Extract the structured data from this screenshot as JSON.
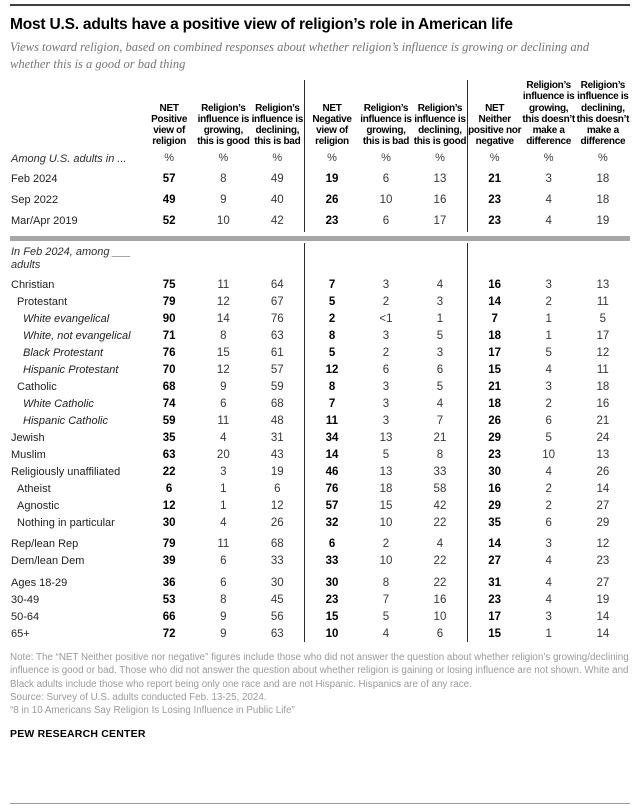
{
  "chart_data": {
    "type": "table",
    "title": "Most U.S. adults have a positive view of religion’s role in American life",
    "subtitle": "Views toward religion, based on combined responses about whether religion’s influence is growing or declining and whether this is a good or bad thing",
    "unit": "%",
    "columns": [
      "NET Positive view of religion",
      "Religion’s influence is growing, this is good",
      "Religion’s influence is declining, this is bad",
      "NET Negative view of religion",
      "Religion’s influence is growing, this is bad",
      "Religion’s influence is declining, this is good",
      "NET Neither positive nor negative",
      "Religion’s influence is growing, this doesn’t make a difference",
      "Religion’s influence is declining, this doesn’t make a difference"
    ],
    "net_column_indexes": [
      0,
      3,
      6
    ],
    "sections": [
      {
        "label": "Among U.S. adults in ...",
        "rows": [
          {
            "label": "Feb 2024",
            "indent": 0,
            "italic": false,
            "values": [
              "57",
              "8",
              "49",
              "19",
              "6",
              "13",
              "21",
              "3",
              "18"
            ]
          },
          {
            "label": "Sep 2022",
            "indent": 0,
            "italic": false,
            "values": [
              "49",
              "9",
              "40",
              "26",
              "10",
              "16",
              "23",
              "4",
              "18"
            ]
          },
          {
            "label": "Mar/Apr 2019",
            "indent": 0,
            "italic": false,
            "values": [
              "52",
              "10",
              "42",
              "23",
              "6",
              "17",
              "23",
              "4",
              "19"
            ]
          }
        ]
      },
      {
        "label": "In Feb 2024, among ___ adults",
        "rows": [
          {
            "label": "Christian",
            "indent": 0,
            "italic": false,
            "values": [
              "75",
              "11",
              "64",
              "7",
              "3",
              "4",
              "16",
              "3",
              "13"
            ]
          },
          {
            "label": "Protestant",
            "indent": 1,
            "italic": false,
            "values": [
              "79",
              "12",
              "67",
              "5",
              "2",
              "3",
              "14",
              "2",
              "11"
            ]
          },
          {
            "label": "White evangelical",
            "indent": 2,
            "italic": true,
            "values": [
              "90",
              "14",
              "76",
              "2",
              "<1",
              "1",
              "7",
              "1",
              "5"
            ]
          },
          {
            "label": "White, not evangelical",
            "indent": 2,
            "italic": true,
            "values": [
              "71",
              "8",
              "63",
              "8",
              "3",
              "5",
              "18",
              "1",
              "17"
            ]
          },
          {
            "label": "Black Protestant",
            "indent": 2,
            "italic": true,
            "values": [
              "76",
              "15",
              "61",
              "5",
              "2",
              "3",
              "17",
              "5",
              "12"
            ]
          },
          {
            "label": "Hispanic Protestant",
            "indent": 2,
            "italic": true,
            "values": [
              "70",
              "12",
              "57",
              "12",
              "6",
              "6",
              "15",
              "4",
              "11"
            ]
          },
          {
            "label": "Catholic",
            "indent": 1,
            "italic": false,
            "values": [
              "68",
              "9",
              "59",
              "8",
              "3",
              "5",
              "21",
              "3",
              "18"
            ]
          },
          {
            "label": "White Catholic",
            "indent": 2,
            "italic": true,
            "values": [
              "74",
              "6",
              "68",
              "7",
              "3",
              "4",
              "18",
              "2",
              "16"
            ]
          },
          {
            "label": "Hispanic Catholic",
            "indent": 2,
            "italic": true,
            "values": [
              "59",
              "11",
              "48",
              "11",
              "3",
              "7",
              "26",
              "6",
              "21"
            ]
          },
          {
            "label": "Jewish",
            "indent": 0,
            "italic": false,
            "values": [
              "35",
              "4",
              "31",
              "34",
              "13",
              "21",
              "29",
              "5",
              "24"
            ]
          },
          {
            "label": "Muslim",
            "indent": 0,
            "italic": false,
            "values": [
              "63",
              "20",
              "43",
              "14",
              "5",
              "8",
              "23",
              "10",
              "13"
            ]
          },
          {
            "label": "Religiously unaffiliated",
            "indent": 0,
            "italic": false,
            "values": [
              "22",
              "3",
              "19",
              "46",
              "13",
              "33",
              "30",
              "4",
              "26"
            ]
          },
          {
            "label": "Atheist",
            "indent": 1,
            "italic": false,
            "values": [
              "6",
              "1",
              "6",
              "76",
              "18",
              "58",
              "16",
              "2",
              "14"
            ]
          },
          {
            "label": "Agnostic",
            "indent": 1,
            "italic": false,
            "values": [
              "12",
              "1",
              "12",
              "57",
              "15",
              "42",
              "29",
              "2",
              "27"
            ]
          },
          {
            "label": "Nothing in particular",
            "indent": 1,
            "italic": false,
            "values": [
              "30",
              "4",
              "26",
              "32",
              "10",
              "22",
              "35",
              "6",
              "29"
            ]
          },
          {
            "label": "Rep/lean Rep",
            "indent": 0,
            "italic": false,
            "gap": true,
            "values": [
              "79",
              "11",
              "68",
              "6",
              "2",
              "4",
              "14",
              "3",
              "12"
            ]
          },
          {
            "label": "Dem/lean Dem",
            "indent": 0,
            "italic": false,
            "values": [
              "39",
              "6",
              "33",
              "33",
              "10",
              "22",
              "27",
              "4",
              "23"
            ]
          },
          {
            "label": "Ages 18-29",
            "indent": 0,
            "italic": false,
            "gap": true,
            "values": [
              "36",
              "6",
              "30",
              "30",
              "8",
              "22",
              "31",
              "4",
              "27"
            ]
          },
          {
            "label": "30-49",
            "indent": 0,
            "italic": false,
            "values": [
              "53",
              "8",
              "45",
              "23",
              "7",
              "16",
              "23",
              "4",
              "19"
            ]
          },
          {
            "label": "50-64",
            "indent": 0,
            "italic": false,
            "values": [
              "66",
              "9",
              "56",
              "15",
              "5",
              "10",
              "17",
              "3",
              "14"
            ]
          },
          {
            "label": "65+",
            "indent": 0,
            "italic": false,
            "values": [
              "72",
              "9",
              "63",
              "10",
              "4",
              "6",
              "15",
              "1",
              "14"
            ]
          }
        ]
      }
    ]
  },
  "footer": {
    "note": "Note: The “NET Neither positive nor negative” figures include those who did not answer the question about whether religion’s growing/declining influence is good or bad. Those who did not answer the question about whether religion is gaining or losing influence are not shown. White and Black adults include those who report being only one race and are not Hispanic. Hispanics are of any race.",
    "source": "Source: Survey of U.S. adults conducted Feb. 13-25, 2024.",
    "report": "“8 in 10 Americans Say Religion Is Losing Influence in Public Life”",
    "brand": "PEW RESEARCH CENTER"
  },
  "colors": {
    "section_bar": "#a6a6a6",
    "group_divider": "#2b2b2b",
    "note_text": "#9b9b9b"
  }
}
